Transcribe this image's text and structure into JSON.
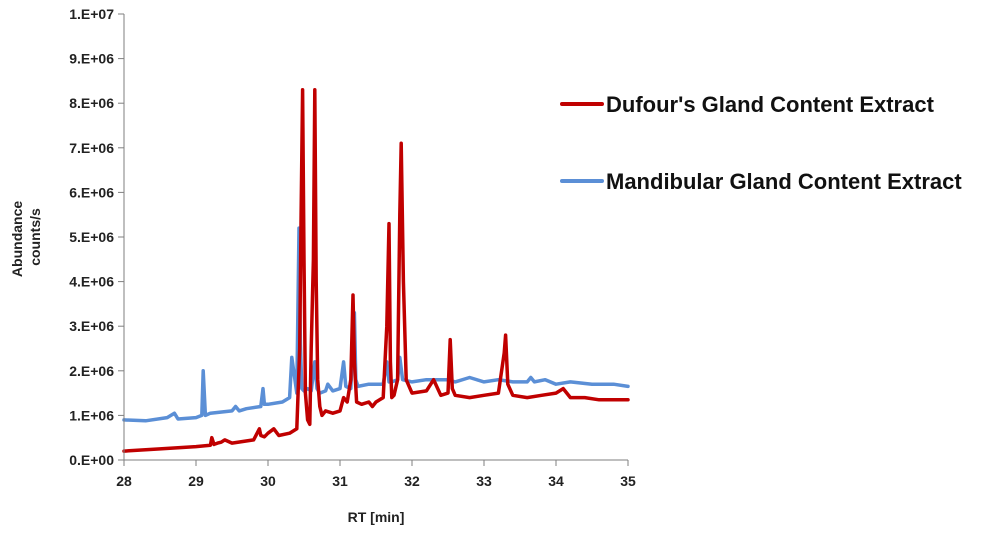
{
  "chart_data": {
    "type": "line",
    "xlabel": "RT [min]",
    "ylabel_lines": [
      "Abundance",
      "counts/s"
    ],
    "xlim": [
      28,
      35
    ],
    "ylim": [
      0,
      10000000
    ],
    "x_ticks": [
      28,
      29,
      30,
      31,
      32,
      33,
      34,
      35
    ],
    "x_tick_labels": [
      "28",
      "29",
      "30",
      "31",
      "32",
      "33",
      "34",
      "35"
    ],
    "y_ticks": [
      0,
      1000000,
      2000000,
      3000000,
      4000000,
      5000000,
      6000000,
      7000000,
      8000000,
      9000000,
      10000000
    ],
    "y_tick_labels": [
      "0.E+00",
      "1.E+06",
      "2.E+06",
      "3.E+06",
      "4.E+06",
      "5.E+06",
      "6.E+06",
      "7.E+06",
      "8.E+06",
      "9.E+06",
      "1.E+07"
    ],
    "grid": false,
    "legend_position": "right",
    "series": [
      {
        "name": "Dufour's Gland Content Extract",
        "color": "#c00000",
        "x": [
          28.0,
          28.5,
          29.0,
          29.2,
          29.22,
          29.25,
          29.3,
          29.35,
          29.4,
          29.5,
          29.8,
          29.88,
          29.9,
          29.95,
          30.0,
          30.08,
          30.15,
          30.3,
          30.4,
          30.44,
          30.46,
          30.48,
          30.5,
          30.52,
          30.55,
          30.58,
          30.6,
          30.63,
          30.65,
          30.67,
          30.69,
          30.72,
          30.75,
          30.8,
          30.9,
          31.0,
          31.05,
          31.1,
          31.15,
          31.18,
          31.2,
          31.23,
          31.3,
          31.4,
          31.45,
          31.5,
          31.6,
          31.65,
          31.68,
          31.7,
          31.72,
          31.75,
          31.8,
          31.83,
          31.85,
          31.88,
          31.92,
          32.0,
          32.2,
          32.3,
          32.4,
          32.5,
          32.53,
          32.56,
          32.6,
          32.8,
          33.0,
          33.2,
          33.28,
          33.3,
          33.33,
          33.4,
          33.6,
          33.8,
          34.0,
          34.1,
          34.2,
          34.4,
          34.6,
          34.8,
          35.0
        ],
        "values": [
          200000,
          250000,
          300000,
          330000,
          500000,
          350000,
          380000,
          400000,
          450000,
          380000,
          450000,
          700000,
          550000,
          520000,
          600000,
          700000,
          550000,
          600000,
          700000,
          2500000,
          5500000,
          8300000,
          4500000,
          1500000,
          900000,
          800000,
          2500000,
          4500000,
          8300000,
          4000000,
          1800000,
          1200000,
          1000000,
          1100000,
          1050000,
          1100000,
          1400000,
          1300000,
          1800000,
          3700000,
          2200000,
          1300000,
          1250000,
          1300000,
          1200000,
          1300000,
          1400000,
          3000000,
          5300000,
          2200000,
          1400000,
          1450000,
          1800000,
          5500000,
          7100000,
          4000000,
          1800000,
          1500000,
          1550000,
          1800000,
          1450000,
          1500000,
          2700000,
          1600000,
          1450000,
          1400000,
          1450000,
          1500000,
          2400000,
          2800000,
          1700000,
          1450000,
          1400000,
          1450000,
          1500000,
          1600000,
          1400000,
          1400000,
          1350000,
          1350000,
          1350000
        ]
      },
      {
        "name": "Mandibular Gland Content Extract",
        "color": "#5b8fd6",
        "x": [
          28.0,
          28.3,
          28.6,
          28.7,
          28.75,
          29.0,
          29.08,
          29.1,
          29.13,
          29.2,
          29.5,
          29.55,
          29.6,
          29.7,
          29.9,
          29.93,
          29.95,
          30.0,
          30.2,
          30.3,
          30.33,
          30.4,
          30.43,
          30.45,
          30.47,
          30.5,
          30.55,
          30.6,
          30.65,
          30.68,
          30.72,
          30.8,
          30.83,
          30.9,
          31.0,
          31.05,
          31.08,
          31.15,
          31.2,
          31.22,
          31.25,
          31.4,
          31.6,
          31.65,
          31.68,
          31.72,
          31.8,
          31.83,
          31.87,
          32.0,
          32.2,
          32.4,
          32.5,
          32.6,
          32.8,
          33.0,
          33.2,
          33.4,
          33.6,
          33.65,
          33.7,
          33.85,
          34.0,
          34.2,
          34.5,
          34.8,
          35.0
        ],
        "values": [
          900000,
          880000,
          950000,
          1050000,
          920000,
          950000,
          1000000,
          2000000,
          1000000,
          1050000,
          1100000,
          1200000,
          1100000,
          1150000,
          1200000,
          1600000,
          1250000,
          1250000,
          1300000,
          1400000,
          2300000,
          1500000,
          5200000,
          2600000,
          1600000,
          1550000,
          1600000,
          1550000,
          2200000,
          1600000,
          1500000,
          1550000,
          1700000,
          1550000,
          1600000,
          2200000,
          1650000,
          1600000,
          3300000,
          1800000,
          1650000,
          1700000,
          1700000,
          2200000,
          1750000,
          1750000,
          1800000,
          2300000,
          1800000,
          1750000,
          1800000,
          1800000,
          1800000,
          1750000,
          1850000,
          1750000,
          1800000,
          1750000,
          1750000,
          1850000,
          1750000,
          1800000,
          1700000,
          1750000,
          1700000,
          1700000,
          1650000
        ]
      }
    ]
  }
}
